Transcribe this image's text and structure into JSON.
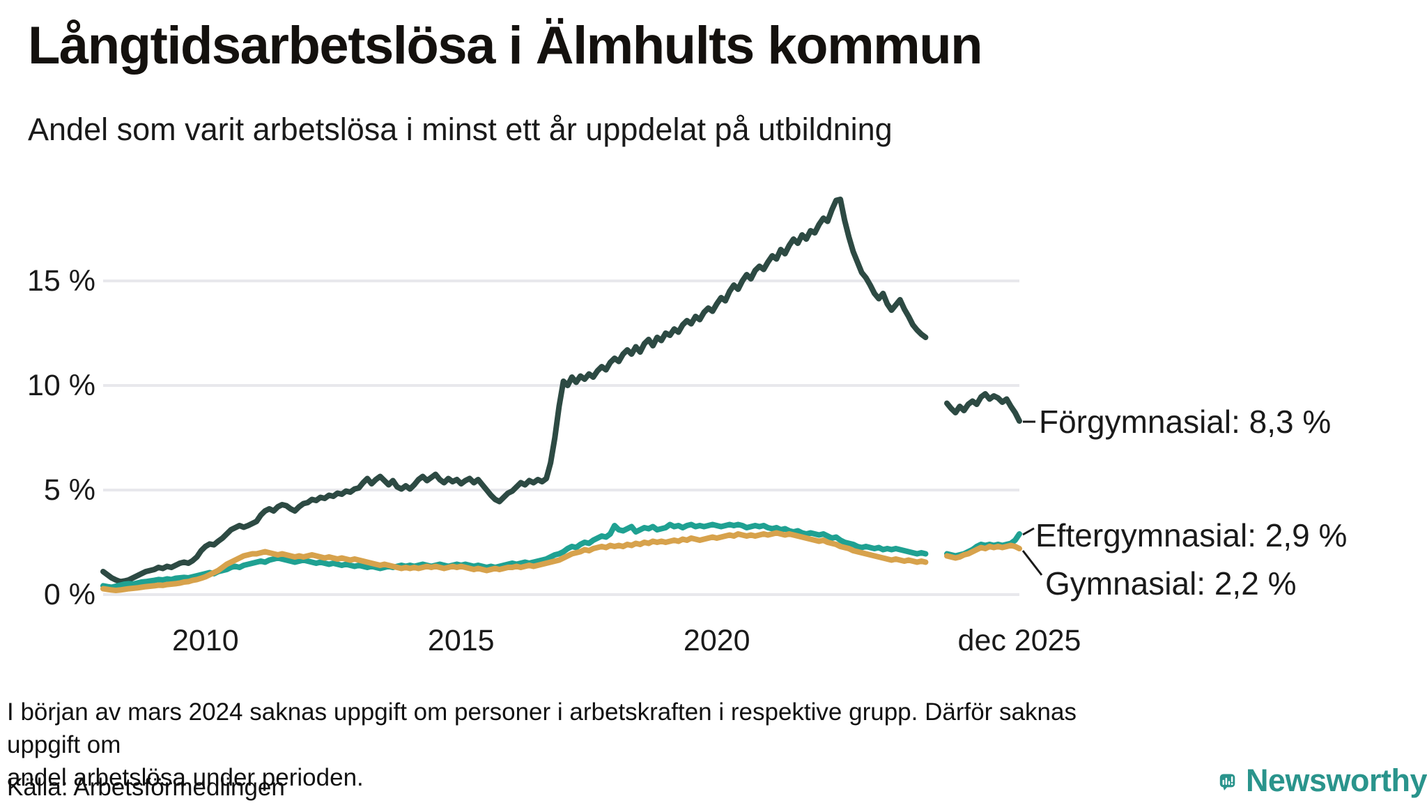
{
  "header": {
    "title": "Långtidsarbetslösa i Älmhults kommun",
    "subtitle": "Andel som varit arbetslösa i minst ett år uppdelat på utbildning"
  },
  "chart_data": {
    "type": "line",
    "title": "Långtidsarbetslösa i Älmhults kommun",
    "subtitle": "Andel som varit arbetslösa i minst ett år uppdelat på utbildning",
    "unit": "%",
    "x_start": "2008-01",
    "x_end": "2025-12",
    "x_frequency": "monthly",
    "x_ticks": [
      "2010",
      "2015",
      "2020",
      "dec 2025"
    ],
    "x_tick_month_index": [
      24,
      84,
      144,
      215
    ],
    "y_ticks": [
      "15 %",
      "10 %",
      "5 %",
      "0 %"
    ],
    "y_tick_values": [
      15,
      10,
      5,
      0
    ],
    "ylim": [
      0,
      19.8
    ],
    "grid": "horizontal-only",
    "data_gap_note": "värden saknas mars–juni 2024 (null i serierna)",
    "series": [
      {
        "name": "Förgymnasial",
        "end_label": "Förgymnasial: 8,3 %",
        "end_value": "8,3 %",
        "color": "#2d4a43",
        "values": [
          1.1,
          0.95,
          0.8,
          0.7,
          0.62,
          0.65,
          0.7,
          0.8,
          0.9,
          1.0,
          1.1,
          1.15,
          1.2,
          1.3,
          1.25,
          1.35,
          1.3,
          1.4,
          1.5,
          1.55,
          1.5,
          1.62,
          1.8,
          2.1,
          2.3,
          2.42,
          2.38,
          2.55,
          2.7,
          2.9,
          3.1,
          3.2,
          3.3,
          3.22,
          3.3,
          3.4,
          3.5,
          3.8,
          4.0,
          4.1,
          4.0,
          4.2,
          4.3,
          4.25,
          4.1,
          4.0,
          4.2,
          4.35,
          4.4,
          4.55,
          4.5,
          4.65,
          4.6,
          4.75,
          4.7,
          4.85,
          4.8,
          4.95,
          4.9,
          5.05,
          5.1,
          5.35,
          5.55,
          5.3,
          5.5,
          5.65,
          5.45,
          5.25,
          5.45,
          5.15,
          5.05,
          5.2,
          5.05,
          5.25,
          5.5,
          5.65,
          5.45,
          5.6,
          5.75,
          5.5,
          5.35,
          5.55,
          5.4,
          5.5,
          5.3,
          5.45,
          5.55,
          5.35,
          5.5,
          5.25,
          5.0,
          4.75,
          4.55,
          4.45,
          4.65,
          4.85,
          4.95,
          5.15,
          5.35,
          5.25,
          5.45,
          5.35,
          5.5,
          5.4,
          5.55,
          6.3,
          7.5,
          9.0,
          10.2,
          10.0,
          10.4,
          10.15,
          10.45,
          10.3,
          10.55,
          10.4,
          10.7,
          10.9,
          10.75,
          11.1,
          11.3,
          11.15,
          11.5,
          11.7,
          11.5,
          11.85,
          11.6,
          12.0,
          12.2,
          11.9,
          12.3,
          12.15,
          12.5,
          12.4,
          12.7,
          12.55,
          12.9,
          13.1,
          12.95,
          13.3,
          13.15,
          13.5,
          13.7,
          13.55,
          13.9,
          14.2,
          14.05,
          14.5,
          14.8,
          14.6,
          15.0,
          15.3,
          15.1,
          15.5,
          15.7,
          15.55,
          15.9,
          16.2,
          16.05,
          16.5,
          16.3,
          16.7,
          17.0,
          16.8,
          17.2,
          17.0,
          17.4,
          17.3,
          17.7,
          18.0,
          17.85,
          18.4,
          18.85,
          18.9,
          17.9,
          17.1,
          16.4,
          15.9,
          15.4,
          15.15,
          14.8,
          14.4,
          14.15,
          14.4,
          13.9,
          13.6,
          13.85,
          14.1,
          13.65,
          13.3,
          12.9,
          12.65,
          12.45,
          12.3,
          null,
          null,
          null,
          null,
          9.15,
          8.9,
          8.7,
          9.0,
          8.8,
          9.1,
          9.25,
          9.1,
          9.45,
          9.6,
          9.35,
          9.5,
          9.4,
          9.2,
          9.35,
          9.0,
          8.7,
          8.3
        ]
      },
      {
        "name": "Eftergymnasial",
        "end_label": "Eftergymnasial: 2,9 %",
        "end_value": "2,9 %",
        "color": "#1fa192",
        "values": [
          0.42,
          0.38,
          0.35,
          0.4,
          0.45,
          0.5,
          0.52,
          0.5,
          0.55,
          0.6,
          0.62,
          0.65,
          0.68,
          0.72,
          0.7,
          0.75,
          0.72,
          0.78,
          0.8,
          0.82,
          0.8,
          0.85,
          0.9,
          0.95,
          1.0,
          1.05,
          1.0,
          1.1,
          1.15,
          1.2,
          1.3,
          1.35,
          1.3,
          1.4,
          1.45,
          1.5,
          1.55,
          1.6,
          1.55,
          1.65,
          1.7,
          1.75,
          1.7,
          1.65,
          1.6,
          1.55,
          1.6,
          1.65,
          1.6,
          1.55,
          1.5,
          1.55,
          1.5,
          1.45,
          1.5,
          1.45,
          1.4,
          1.45,
          1.4,
          1.35,
          1.4,
          1.35,
          1.3,
          1.35,
          1.3,
          1.25,
          1.3,
          1.35,
          1.3,
          1.35,
          1.4,
          1.35,
          1.4,
          1.35,
          1.4,
          1.45,
          1.4,
          1.35,
          1.4,
          1.45,
          1.4,
          1.35,
          1.4,
          1.45,
          1.4,
          1.45,
          1.4,
          1.35,
          1.4,
          1.35,
          1.3,
          1.35,
          1.3,
          1.35,
          1.4,
          1.45,
          1.5,
          1.45,
          1.5,
          1.55,
          1.5,
          1.55,
          1.6,
          1.65,
          1.7,
          1.8,
          1.9,
          1.95,
          2.05,
          2.2,
          2.3,
          2.25,
          2.4,
          2.5,
          2.45,
          2.6,
          2.7,
          2.8,
          2.75,
          2.9,
          3.3,
          3.1,
          3.05,
          3.15,
          3.25,
          3.0,
          3.1,
          3.2,
          3.15,
          3.25,
          3.1,
          3.15,
          3.2,
          3.35,
          3.25,
          3.3,
          3.2,
          3.3,
          3.35,
          3.25,
          3.3,
          3.25,
          3.3,
          3.35,
          3.3,
          3.25,
          3.3,
          3.35,
          3.3,
          3.35,
          3.3,
          3.2,
          3.25,
          3.3,
          3.25,
          3.3,
          3.2,
          3.15,
          3.2,
          3.1,
          3.15,
          3.05,
          3.0,
          3.05,
          2.95,
          2.9,
          2.95,
          2.9,
          2.85,
          2.9,
          2.8,
          2.7,
          2.75,
          2.6,
          2.5,
          2.45,
          2.4,
          2.3,
          2.25,
          2.3,
          2.25,
          2.2,
          2.25,
          2.15,
          2.2,
          2.15,
          2.2,
          2.15,
          2.1,
          2.05,
          2.0,
          1.95,
          2.0,
          1.95,
          null,
          null,
          null,
          null,
          1.95,
          1.9,
          1.85,
          1.9,
          1.95,
          2.05,
          2.15,
          2.3,
          2.4,
          2.35,
          2.4,
          2.35,
          2.4,
          2.35,
          2.4,
          2.45,
          2.6,
          2.9
        ]
      },
      {
        "name": "Gymnasial",
        "end_label": "Gymnasial: 2,2 %",
        "end_value": "2,2 %",
        "color": "#d7a24c",
        "values": [
          0.28,
          0.25,
          0.22,
          0.2,
          0.22,
          0.25,
          0.28,
          0.3,
          0.32,
          0.35,
          0.38,
          0.4,
          0.42,
          0.45,
          0.44,
          0.48,
          0.5,
          0.52,
          0.55,
          0.6,
          0.62,
          0.68,
          0.72,
          0.78,
          0.85,
          0.95,
          1.05,
          1.15,
          1.3,
          1.45,
          1.55,
          1.65,
          1.75,
          1.85,
          1.9,
          1.95,
          1.95,
          2.0,
          2.05,
          2.0,
          1.95,
          1.9,
          1.95,
          1.9,
          1.85,
          1.8,
          1.85,
          1.8,
          1.85,
          1.9,
          1.85,
          1.8,
          1.75,
          1.8,
          1.75,
          1.7,
          1.75,
          1.7,
          1.65,
          1.7,
          1.65,
          1.6,
          1.55,
          1.5,
          1.45,
          1.4,
          1.45,
          1.4,
          1.35,
          1.3,
          1.25,
          1.3,
          1.25,
          1.3,
          1.25,
          1.3,
          1.35,
          1.3,
          1.35,
          1.3,
          1.25,
          1.3,
          1.35,
          1.3,
          1.35,
          1.3,
          1.25,
          1.2,
          1.25,
          1.2,
          1.15,
          1.2,
          1.25,
          1.2,
          1.25,
          1.3,
          1.3,
          1.35,
          1.3,
          1.35,
          1.4,
          1.35,
          1.4,
          1.45,
          1.5,
          1.55,
          1.6,
          1.65,
          1.75,
          1.85,
          1.95,
          2.0,
          2.05,
          2.15,
          2.1,
          2.2,
          2.25,
          2.3,
          2.25,
          2.35,
          2.3,
          2.35,
          2.3,
          2.4,
          2.35,
          2.45,
          2.4,
          2.5,
          2.45,
          2.55,
          2.5,
          2.55,
          2.5,
          2.55,
          2.6,
          2.55,
          2.65,
          2.6,
          2.7,
          2.65,
          2.6,
          2.65,
          2.7,
          2.75,
          2.7,
          2.75,
          2.8,
          2.85,
          2.8,
          2.9,
          2.85,
          2.8,
          2.85,
          2.8,
          2.85,
          2.9,
          2.85,
          2.9,
          2.95,
          2.9,
          2.85,
          2.9,
          2.85,
          2.8,
          2.75,
          2.7,
          2.65,
          2.6,
          2.55,
          2.6,
          2.5,
          2.45,
          2.4,
          2.3,
          2.25,
          2.2,
          2.1,
          2.05,
          2.0,
          1.95,
          1.9,
          1.85,
          1.8,
          1.75,
          1.7,
          1.65,
          1.7,
          1.65,
          1.6,
          1.65,
          1.6,
          1.55,
          1.6,
          1.55,
          null,
          null,
          null,
          null,
          1.85,
          1.8,
          1.75,
          1.8,
          1.9,
          1.95,
          2.05,
          2.15,
          2.25,
          2.2,
          2.3,
          2.25,
          2.3,
          2.25,
          2.3,
          2.35,
          2.3,
          2.2
        ]
      }
    ],
    "colors": {
      "grid": "#e8e8ec",
      "text": "#1a1a1a",
      "leader": "#1a1a1a"
    }
  },
  "footnote": {
    "line1": "I början av mars 2024 saknas uppgift om personer i arbetskraften i respektive grupp. Därför saknas uppgift om",
    "line2": "andel arbetslösa under perioden."
  },
  "source": "Källa: Arbetsförmedlingen",
  "logo": {
    "text": "Newsworthy",
    "color": "#2a948c"
  }
}
